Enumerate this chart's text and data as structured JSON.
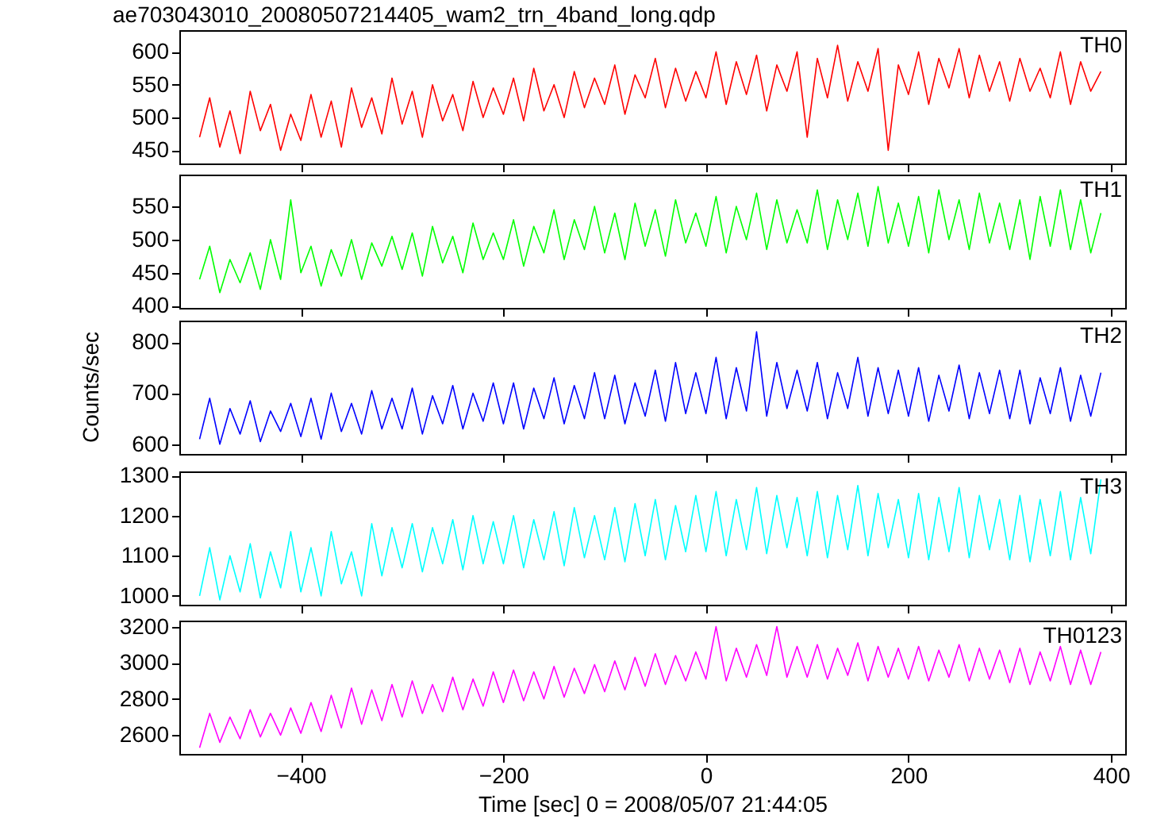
{
  "chart_data": [
    {
      "type": "line",
      "title": "ae703043010_20080507214405_wam2_trn_4band_long.qdp",
      "xlim": [
        -520,
        414
      ],
      "xticks": [
        -400,
        -200,
        0,
        200,
        400
      ],
      "ylim": [
        430,
        633
      ],
      "yticks": [
        450,
        500,
        550,
        600
      ],
      "tick_labels": "y",
      "grid": false,
      "x": [
        -500,
        -490,
        -480,
        -470,
        -460,
        -450,
        -440,
        -430,
        -420,
        -410,
        -400,
        -390,
        -380,
        -370,
        -360,
        -350,
        -340,
        -330,
        -320,
        -310,
        -300,
        -290,
        -280,
        -270,
        -260,
        -250,
        -240,
        -230,
        -220,
        -210,
        -200,
        -190,
        -180,
        -170,
        -160,
        -150,
        -140,
        -130,
        -120,
        -110,
        -100,
        -90,
        -80,
        -70,
        -60,
        -50,
        -40,
        -30,
        -20,
        -10,
        0,
        10,
        20,
        30,
        40,
        50,
        60,
        70,
        80,
        90,
        100,
        110,
        120,
        130,
        140,
        150,
        160,
        170,
        180,
        190,
        200,
        210,
        220,
        230,
        240,
        250,
        260,
        270,
        280,
        290,
        300,
        310,
        320,
        330,
        340,
        350,
        360,
        370,
        380,
        390
      ],
      "series": [
        {
          "name": "TH0",
          "color": "#ff0000",
          "values": [
            470,
            530,
            455,
            510,
            445,
            540,
            480,
            520,
            450,
            505,
            465,
            535,
            470,
            525,
            455,
            545,
            485,
            530,
            475,
            560,
            490,
            540,
            470,
            550,
            495,
            535,
            480,
            555,
            500,
            545,
            505,
            560,
            495,
            575,
            510,
            550,
            500,
            570,
            515,
            560,
            520,
            580,
            505,
            565,
            530,
            590,
            515,
            575,
            525,
            570,
            530,
            600,
            520,
            585,
            535,
            595,
            510,
            580,
            540,
            600,
            470,
            590,
            530,
            610,
            525,
            585,
            540,
            605,
            450,
            580,
            535,
            600,
            520,
            590,
            545,
            605,
            530,
            595,
            540,
            585,
            525,
            590,
            540,
            575,
            530,
            600,
            520,
            585,
            540,
            570
          ]
        }
      ]
    },
    {
      "type": "line",
      "xlim": [
        -520,
        414
      ],
      "xticks": [
        -400,
        -200,
        0,
        200,
        400
      ],
      "ylim": [
        397,
        598
      ],
      "yticks": [
        400,
        450,
        500,
        550
      ],
      "tick_labels": "y",
      "grid": false,
      "x": [
        -500,
        -490,
        -480,
        -470,
        -460,
        -450,
        -440,
        -430,
        -420,
        -410,
        -400,
        -390,
        -380,
        -370,
        -360,
        -350,
        -340,
        -330,
        -320,
        -310,
        -300,
        -290,
        -280,
        -270,
        -260,
        -250,
        -240,
        -230,
        -220,
        -210,
        -200,
        -190,
        -180,
        -170,
        -160,
        -150,
        -140,
        -130,
        -120,
        -110,
        -100,
        -90,
        -80,
        -70,
        -60,
        -50,
        -40,
        -30,
        -20,
        -10,
        0,
        10,
        20,
        30,
        40,
        50,
        60,
        70,
        80,
        90,
        100,
        110,
        120,
        130,
        140,
        150,
        160,
        170,
        180,
        190,
        200,
        210,
        220,
        230,
        240,
        250,
        260,
        270,
        280,
        290,
        300,
        310,
        320,
        330,
        340,
        350,
        360,
        370,
        380,
        390
      ],
      "series": [
        {
          "name": "TH1",
          "color": "#00ff00",
          "values": [
            440,
            490,
            420,
            470,
            435,
            480,
            425,
            500,
            440,
            560,
            450,
            490,
            430,
            485,
            445,
            500,
            440,
            495,
            460,
            505,
            455,
            510,
            445,
            520,
            465,
            505,
            450,
            525,
            470,
            510,
            470,
            530,
            460,
            520,
            480,
            545,
            470,
            530,
            485,
            550,
            480,
            540,
            470,
            555,
            490,
            545,
            475,
            560,
            495,
            540,
            490,
            565,
            480,
            550,
            500,
            570,
            485,
            560,
            495,
            545,
            495,
            575,
            485,
            560,
            500,
            570,
            490,
            580,
            495,
            555,
            490,
            565,
            480,
            575,
            500,
            560,
            485,
            570,
            495,
            555,
            485,
            560,
            470,
            565,
            490,
            575,
            485,
            560,
            480,
            540
          ]
        }
      ]
    },
    {
      "type": "line",
      "ylabel": "Counts/sec",
      "xlim": [
        -520,
        414
      ],
      "xticks": [
        -400,
        -200,
        0,
        200,
        400
      ],
      "ylim": [
        581,
        842
      ],
      "yticks": [
        600,
        700,
        800
      ],
      "tick_labels": "y",
      "grid": false,
      "x": [
        -500,
        -490,
        -480,
        -470,
        -460,
        -450,
        -440,
        -430,
        -420,
        -410,
        -400,
        -390,
        -380,
        -370,
        -360,
        -350,
        -340,
        -330,
        -320,
        -310,
        -300,
        -290,
        -280,
        -270,
        -260,
        -250,
        -240,
        -230,
        -220,
        -210,
        -200,
        -190,
        -180,
        -170,
        -160,
        -150,
        -140,
        -130,
        -120,
        -110,
        -100,
        -90,
        -80,
        -70,
        -60,
        -50,
        -40,
        -30,
        -20,
        -10,
        0,
        10,
        20,
        30,
        40,
        50,
        60,
        70,
        80,
        90,
        100,
        110,
        120,
        130,
        140,
        150,
        160,
        170,
        180,
        190,
        200,
        210,
        220,
        230,
        240,
        250,
        260,
        270,
        280,
        290,
        300,
        310,
        320,
        330,
        340,
        350,
        360,
        370,
        380,
        390
      ],
      "series": [
        {
          "name": "TH2",
          "color": "#0000ff",
          "values": [
            610,
            690,
            600,
            670,
            620,
            685,
            605,
            665,
            625,
            680,
            615,
            690,
            610,
            700,
            625,
            680,
            620,
            705,
            630,
            690,
            630,
            710,
            620,
            695,
            640,
            715,
            630,
            700,
            645,
            720,
            640,
            720,
            630,
            710,
            650,
            730,
            640,
            715,
            650,
            740,
            650,
            735,
            640,
            720,
            655,
            745,
            645,
            760,
            660,
            740,
            660,
            770,
            650,
            750,
            665,
            820,
            655,
            760,
            670,
            745,
            665,
            760,
            650,
            740,
            670,
            770,
            655,
            750,
            660,
            745,
            655,
            750,
            645,
            735,
            665,
            755,
            650,
            740,
            660,
            745,
            650,
            745,
            640,
            730,
            660,
            750,
            645,
            735,
            655,
            740
          ]
        }
      ]
    },
    {
      "type": "line",
      "xlim": [
        -520,
        414
      ],
      "xticks": [
        -400,
        -200,
        0,
        200,
        400
      ],
      "ylim": [
        978,
        1310
      ],
      "yticks": [
        1000,
        1100,
        1200,
        1300
      ],
      "tick_labels": "y",
      "grid": false,
      "x": [
        -500,
        -490,
        -480,
        -470,
        -460,
        -450,
        -440,
        -430,
        -420,
        -410,
        -400,
        -390,
        -380,
        -370,
        -360,
        -350,
        -340,
        -330,
        -320,
        -310,
        -300,
        -290,
        -280,
        -270,
        -260,
        -250,
        -240,
        -230,
        -220,
        -210,
        -200,
        -190,
        -180,
        -170,
        -160,
        -150,
        -140,
        -130,
        -120,
        -110,
        -100,
        -90,
        -80,
        -70,
        -60,
        -50,
        -40,
        -30,
        -20,
        -10,
        0,
        10,
        20,
        30,
        40,
        50,
        60,
        70,
        80,
        90,
        100,
        110,
        120,
        130,
        140,
        150,
        160,
        170,
        180,
        190,
        200,
        210,
        220,
        230,
        240,
        250,
        260,
        270,
        280,
        290,
        300,
        310,
        320,
        330,
        340,
        350,
        360,
        370,
        380,
        390
      ],
      "series": [
        {
          "name": "TH3",
          "color": "#00ffff",
          "values": [
            1000,
            1120,
            990,
            1100,
            1010,
            1130,
            995,
            1110,
            1020,
            1160,
            1010,
            1120,
            1000,
            1160,
            1030,
            1110,
            1000,
            1180,
            1050,
            1170,
            1070,
            1180,
            1060,
            1170,
            1080,
            1190,
            1065,
            1200,
            1080,
            1185,
            1080,
            1200,
            1070,
            1190,
            1090,
            1210,
            1075,
            1220,
            1095,
            1200,
            1090,
            1220,
            1085,
            1230,
            1100,
            1240,
            1090,
            1225,
            1110,
            1250,
            1110,
            1260,
            1100,
            1240,
            1115,
            1270,
            1105,
            1250,
            1120,
            1245,
            1100,
            1260,
            1095,
            1250,
            1115,
            1275,
            1100,
            1255,
            1120,
            1240,
            1095,
            1255,
            1090,
            1245,
            1110,
            1270,
            1095,
            1250,
            1115,
            1240,
            1090,
            1250,
            1085,
            1240,
            1100,
            1260,
            1090,
            1245,
            1105,
            1290
          ]
        }
      ]
    },
    {
      "type": "line",
      "xlabel": "Time [sec] 0 = 2008/05/07 21:44:05",
      "xlim": [
        -520,
        414
      ],
      "xticks": [
        -400,
        -200,
        0,
        200,
        400
      ],
      "ylim": [
        2496,
        3233
      ],
      "yticks": [
        2600,
        2800,
        3000,
        3200
      ],
      "grid": false,
      "x": [
        -500,
        -490,
        -480,
        -470,
        -460,
        -450,
        -440,
        -430,
        -420,
        -410,
        -400,
        -390,
        -380,
        -370,
        -360,
        -350,
        -340,
        -330,
        -320,
        -310,
        -300,
        -290,
        -280,
        -270,
        -260,
        -250,
        -240,
        -230,
        -220,
        -210,
        -200,
        -190,
        -180,
        -170,
        -160,
        -150,
        -140,
        -130,
        -120,
        -110,
        -100,
        -90,
        -80,
        -70,
        -60,
        -50,
        -40,
        -30,
        -20,
        -10,
        0,
        10,
        20,
        30,
        40,
        50,
        60,
        70,
        80,
        90,
        100,
        110,
        120,
        130,
        140,
        150,
        160,
        170,
        180,
        190,
        200,
        210,
        220,
        230,
        240,
        250,
        260,
        270,
        280,
        290,
        300,
        310,
        320,
        330,
        340,
        350,
        360,
        370,
        380,
        390
      ],
      "series": [
        {
          "name": "TH0123",
          "color": "#ff00ff",
          "values": [
            2530,
            2720,
            2560,
            2700,
            2580,
            2740,
            2590,
            2720,
            2600,
            2750,
            2610,
            2780,
            2620,
            2820,
            2640,
            2860,
            2660,
            2850,
            2680,
            2880,
            2700,
            2900,
            2720,
            2880,
            2730,
            2920,
            2740,
            2910,
            2760,
            2950,
            2780,
            2960,
            2790,
            2950,
            2800,
            2980,
            2810,
            2970,
            2830,
            2990,
            2840,
            3010,
            2850,
            3030,
            2870,
            3050,
            2880,
            3040,
            2900,
            3060,
            2910,
            3200,
            2900,
            3080,
            2920,
            3100,
            2930,
            3200,
            2920,
            3090,
            2920,
            3100,
            2910,
            3080,
            2930,
            3110,
            2900,
            3090,
            2920,
            3080,
            2910,
            3090,
            2900,
            3070,
            2920,
            3100,
            2900,
            3080,
            2910,
            3070,
            2890,
            3080,
            2880,
            3060,
            2900,
            3090,
            2880,
            3070,
            2880,
            3060
          ]
        }
      ]
    }
  ]
}
